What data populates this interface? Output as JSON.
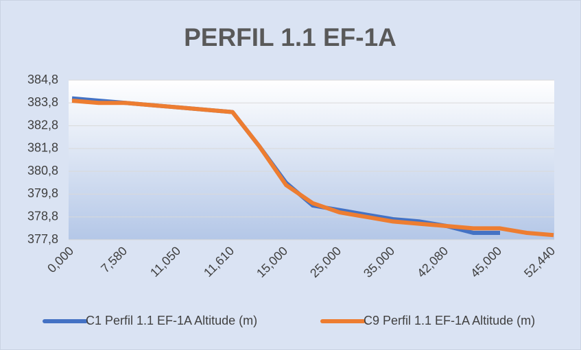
{
  "chart_data": {
    "type": "line",
    "title": "PERFIL 1.1 EF-1A",
    "categories": [
      "0,000",
      null,
      "7,580",
      null,
      "11,050",
      null,
      "11,610",
      null,
      "15,000",
      null,
      "25,000",
      null,
      "35,000",
      null,
      "42,080",
      null,
      "45,000",
      null,
      "52,440"
    ],
    "series": [
      {
        "name": "C1 Perfil 1.1 EF-1A Altitude (m)",
        "color": "#4472c4",
        "values": [
          384.0,
          383.9,
          383.8,
          383.7,
          383.6,
          383.5,
          383.4,
          381.9,
          380.3,
          379.3,
          379.1,
          378.9,
          378.7,
          378.6,
          378.4,
          378.1,
          378.1,
          null,
          null
        ]
      },
      {
        "name": "C9 Perfil 1.1 EF-1A Altitude (m)",
        "color": "#ed7d31",
        "values": [
          383.9,
          383.8,
          383.8,
          383.7,
          383.6,
          383.5,
          383.4,
          381.9,
          380.2,
          379.4,
          379.0,
          378.8,
          378.6,
          378.5,
          378.4,
          378.3,
          378.3,
          378.1,
          378.0
        ]
      }
    ],
    "ylim": [
      377.8,
      384.8
    ],
    "yticks": [
      {
        "value": 377.8,
        "label": "377,8"
      },
      {
        "value": 378.8,
        "label": "378,8"
      },
      {
        "value": 379.8,
        "label": "379,8"
      },
      {
        "value": 380.8,
        "label": "380,8"
      },
      {
        "value": 381.8,
        "label": "381,8"
      },
      {
        "value": 382.8,
        "label": "382,8"
      },
      {
        "value": 383.8,
        "label": "383,8"
      },
      {
        "value": 384.8,
        "label": "384,8"
      }
    ],
    "grid": true,
    "legend": "bottom"
  }
}
